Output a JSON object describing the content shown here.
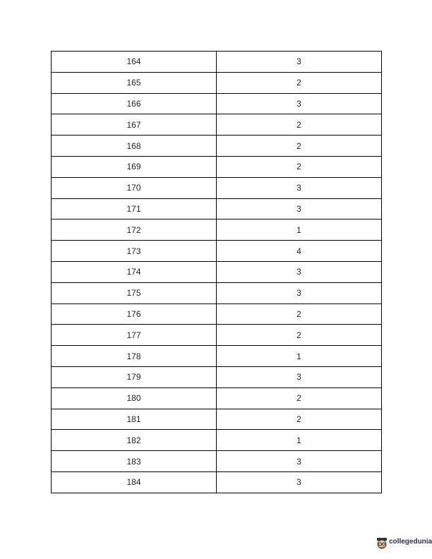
{
  "table": {
    "rows": [
      [
        "164",
        "3"
      ],
      [
        "165",
        "2"
      ],
      [
        "166",
        "3"
      ],
      [
        "167",
        "2"
      ],
      [
        "168",
        "2"
      ],
      [
        "169",
        "2"
      ],
      [
        "170",
        "3"
      ],
      [
        "171",
        "3"
      ],
      [
        "172",
        "1"
      ],
      [
        "173",
        "4"
      ],
      [
        "174",
        "3"
      ],
      [
        "175",
        "3"
      ],
      [
        "176",
        "2"
      ],
      [
        "177",
        "2"
      ],
      [
        "178",
        "1"
      ],
      [
        "179",
        "3"
      ],
      [
        "180",
        "2"
      ],
      [
        "181",
        "2"
      ],
      [
        "182",
        "1"
      ],
      [
        "183",
        "3"
      ],
      [
        "184",
        "3"
      ]
    ]
  },
  "logo": {
    "text": "collegedunia",
    "icon": "student-mascot-icon"
  }
}
